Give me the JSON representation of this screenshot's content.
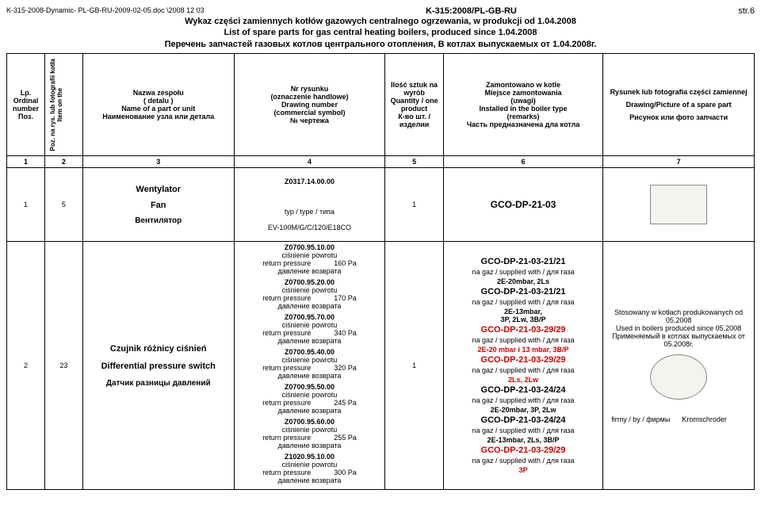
{
  "header": {
    "path": "K-315-2008-Dynamic- PL-GB-RU-2009-02-05.doc \\2008 12 03",
    "code": "K-315:2008/PL-GB-RU",
    "page": "str.6",
    "title_pl": "Wykaz części zamiennych kotłów gazowych centralnego ogrzewania, w produkcji od 1.04.2008",
    "title_en": "List of spare parts for gas central heating boilers, produced since 1.04.2008",
    "title_ru": "Перечень запчастей газовых котлов центрального отопления, В котлах выпускаемых от 1.04.2008г."
  },
  "columns": {
    "c1": {
      "l1": "Lp.",
      "l2": "Ordinal number",
      "l3": "Поз."
    },
    "c2": {
      "l1": "Poz. na rys. lub fotografii kotła",
      "l2": "Item on the"
    },
    "c3": {
      "l1": "Nazwa zespołu",
      "l2": "( detalu )",
      "l3": "Name of a part or unit",
      "l4": "Наименование узла или детала"
    },
    "c4": {
      "l1": "Nr rysunku",
      "l2": "(oznaczenie handlowe)",
      "l3": "Drawing number",
      "l4": "(commercial symbol)",
      "l5": "№ чертежа"
    },
    "c5": {
      "l1": "Ilość sztuk na wyrób",
      "l2": "Quantity / one product",
      "l3": "К-во шт. / изделии"
    },
    "c6": {
      "l1": "Zamontowano w kotle",
      "l2": "Miejsce zamontowania",
      "l3": "(uwagi)",
      "l4": "Installed in the boiler type",
      "l5": "(remarks)",
      "l6": "Часть предназначена дла котла"
    },
    "c7": {
      "l1": "Rysunek lub fotografia części zamiennej",
      "l2": "Drawing/Picture of a spare part",
      "l3": "Рисунок или фото запчасти"
    },
    "nums": {
      "n1": "1",
      "n2": "2",
      "n3": "3",
      "n4": "4",
      "n5": "5",
      "n6": "6",
      "n7": "7"
    }
  },
  "row1": {
    "lp": "1",
    "poz": "5",
    "name_pl": "Wentylator",
    "name_en": "Fan",
    "name_ru": "Вентилятор",
    "draw_code": "Z0317.14.00.00",
    "draw_type": "typ / type / типа",
    "draw_model": "EV-100M/G/C/120/E18CO",
    "qty": "1",
    "model": "GCO-DP-21-03"
  },
  "row2": {
    "lp": "2",
    "poz": "23",
    "name_pl": "Czujnik różnicy ciśnień",
    "name_en": "Differential pressure switch",
    "name_ru": "Датчик разницы давлений",
    "qty": "1",
    "variants": [
      {
        "code": "Z0700.95.10.00",
        "l1": "ciśnienie powrotu",
        "l2": "return pressure",
        "val": "160 Pa",
        "l3": "давление возврата"
      },
      {
        "code": "Z0700.95.20.00",
        "l1": "ciśnienie powrotu",
        "l2": "return pressure",
        "val": "170 Pa",
        "l3": "давление возврата"
      },
      {
        "code": "Z0700.95.70.00",
        "l1": "ciśnienie powrotu",
        "l2": "return pressure",
        "val": "340 Pa",
        "l3": "давление возврата"
      },
      {
        "code": "Z0700.95.40.00",
        "l1": "ciśnienie powrotu",
        "l2": "return pressure",
        "val": "320 Pa",
        "l3": "давление возврата"
      },
      {
        "code": "Z0700.95.50.00",
        "l1": "ciśnienie powrotu",
        "l2": "return pressure",
        "val": "245 Pa",
        "l3": "давление возврата"
      },
      {
        "code": "Z0700.95.60.00",
        "l1": "ciśnienie powrotu",
        "l2": "return pressure",
        "val": "255 Pa",
        "l3": "давление возврата"
      },
      {
        "code": "Z1020.95.10.00",
        "l1": "ciśnienie powrotu",
        "l2": "return pressure",
        "val": "300 Pa",
        "l3": "давление возврата"
      }
    ],
    "mounts": [
      {
        "hdr": "GCO-DP-21-03-21/21",
        "gas": "na gaz / supplied with / для газа",
        "spec": "2E-20mbar, 2Ls",
        "red": false
      },
      {
        "hdr": "GCO-DP-21-03-21/21",
        "gas": "na gaz / supplied with / для газа",
        "spec": "2E-13mbar,\n3P,  2Lw, 3B/P",
        "red": false
      },
      {
        "hdr": "GCO-DP-21-03-29/29",
        "gas": "na gaz / supplied with / для газа",
        "spec": "2E-20 mbar i 13 mbar, 3B/P",
        "red": true
      },
      {
        "hdr": "GCO-DP-21-03-29/29",
        "gas": "na gaz / supplied with / для газа",
        "spec": "2Ls, 2Lw",
        "red": true
      },
      {
        "hdr": "GCO-DP-21-03-24/24",
        "gas": "na gaz / supplied with / для газа",
        "spec": "2E-20mbar, 3P, 2Lw",
        "red": false
      },
      {
        "hdr": "GCO-DP-21-03-24/24",
        "gas": "na gaz / supplied with / для газа",
        "spec": "2E-13mbar, 2Ls, 3B/P",
        "red": false
      },
      {
        "hdr": "GCO-DP-21-03-29/29",
        "gas": "na gaz / supplied with / для газа",
        "spec": "3P",
        "red": true
      }
    ],
    "pic_note_pl": "Stosowany w kotłach produkowanych od 05.2008",
    "pic_note_en": "Used in boilers produced since 05.2008",
    "pic_note_ru": "Применяемый в котлах выпускаемых от",
    "pic_note_date": "05.2008г.",
    "firm_label": "firmy / by / фирмы",
    "firm_name": "Kromschroder"
  }
}
